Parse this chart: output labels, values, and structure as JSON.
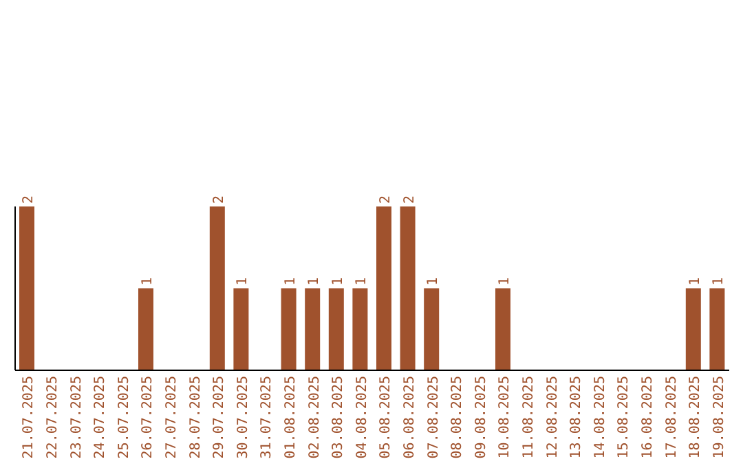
{
  "chart_data": {
    "type": "bar",
    "categories": [
      "21.07.2025",
      "22.07.2025",
      "23.07.2025",
      "24.07.2025",
      "25.07.2025",
      "26.07.2025",
      "27.07.2025",
      "28.07.2025",
      "29.07.2025",
      "30.07.2025",
      "31.07.2025",
      "01.08.2025",
      "02.08.2025",
      "03.08.2025",
      "04.08.2025",
      "05.08.2025",
      "06.08.2025",
      "07.08.2025",
      "08.08.2025",
      "09.08.2025",
      "10.08.2025",
      "11.08.2025",
      "12.08.2025",
      "13.08.2025",
      "14.08.2025",
      "15.08.2025",
      "16.08.2025",
      "17.08.2025",
      "18.08.2025",
      "19.08.2025"
    ],
    "values": [
      2,
      0,
      0,
      0,
      0,
      1,
      0,
      0,
      2,
      1,
      0,
      1,
      1,
      1,
      1,
      2,
      2,
      1,
      0,
      0,
      1,
      0,
      0,
      0,
      0,
      0,
      0,
      0,
      1,
      1
    ],
    "value_labels": [
      "2",
      null,
      null,
      null,
      null,
      "1",
      null,
      null,
      "2",
      "1",
      null,
      "1",
      "1",
      "1",
      "1",
      "2",
      "2",
      "1",
      null,
      null,
      "1",
      null,
      null,
      null,
      null,
      null,
      null,
      null,
      "1",
      "1"
    ],
    "color": "#a0522d",
    "grid": false,
    "legend": false
  }
}
